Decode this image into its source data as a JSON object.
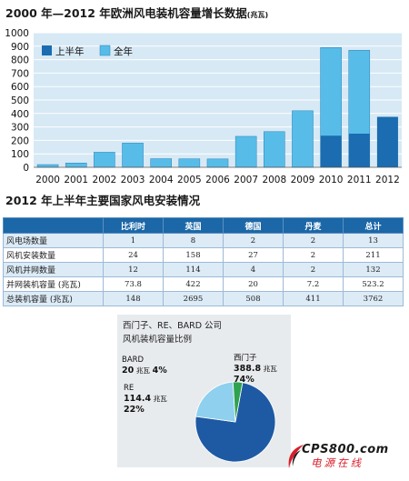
{
  "chart_title": "2000 年—2012 年欧洲风电装机容量增长数据",
  "chart_title_unit": "(兆瓦)",
  "table_title": "2012 年上半年主要国家风电安装情况",
  "table": {
    "headers": [
      "",
      "比利时",
      "英国",
      "德国",
      "丹麦",
      "总计"
    ],
    "rows": [
      [
        "风电场数量",
        "1",
        "8",
        "2",
        "2",
        "13"
      ],
      [
        "风机安装数量",
        "24",
        "158",
        "27",
        "2",
        "211"
      ],
      [
        "风机并网数量",
        "12",
        "114",
        "4",
        "2",
        "132"
      ],
      [
        "并网装机容量 (兆瓦)",
        "73.8",
        "422",
        "20",
        "7.2",
        "523.2"
      ],
      [
        "总装机容量 (兆瓦)",
        "148",
        "2695",
        "508",
        "411",
        "3762"
      ]
    ]
  },
  "pie_title_lines": [
    "西门子、RE、BARD 公司",
    "风机装机容量比例"
  ],
  "pie_labels": {
    "siemens_name": "西门子",
    "siemens_value": "388.8",
    "siemens_unit": "兆瓦",
    "siemens_pct": "74%",
    "bard_name": "BARD",
    "bard_value": "20",
    "bard_unit": "兆瓦",
    "bard_pct": "4%",
    "re_name": "RE",
    "re_value": "114.4",
    "re_unit": "兆瓦",
    "re_pct": "22%"
  },
  "watermark": {
    "brand": "CPS800.com",
    "sub": "电源在线"
  },
  "colors": {
    "first_half": "#1b6cb0",
    "full_year": "#57bde8",
    "plot_bg": "#d7e9f5",
    "siemens": "#1d5aa3",
    "re": "#8ed0ee",
    "bard": "#2fa24f"
  },
  "chart_data": [
    {
      "type": "bar",
      "title": "2000 年—2012 年欧洲风电装机容量增长数据(兆瓦)",
      "categories": [
        "2000",
        "2001",
        "2002",
        "2003",
        "2004",
        "2005",
        "2006",
        "2007",
        "2008",
        "2009",
        "2010",
        "2011",
        "2012"
      ],
      "series": [
        {
          "name": "上半年",
          "values": [
            null,
            null,
            null,
            null,
            null,
            null,
            null,
            null,
            null,
            null,
            235,
            250,
            375
          ]
        },
        {
          "name": "全年",
          "values": [
            20,
            32,
            112,
            180,
            64,
            63,
            62,
            230,
            265,
            420,
            890,
            870,
            null
          ]
        }
      ],
      "ylim": [
        0,
        1000
      ],
      "yticks": [
        0,
        100,
        200,
        300,
        400,
        500,
        600,
        700,
        800,
        900,
        1000
      ],
      "grid": true,
      "legend": "top-left"
    },
    {
      "type": "pie",
      "title": "西门子、RE、BARD 公司 风机装机容量比例",
      "labels": [
        "西门子",
        "RE",
        "BARD"
      ],
      "values": [
        388.8,
        114.4,
        20
      ],
      "percent": [
        74,
        22,
        4
      ]
    }
  ]
}
